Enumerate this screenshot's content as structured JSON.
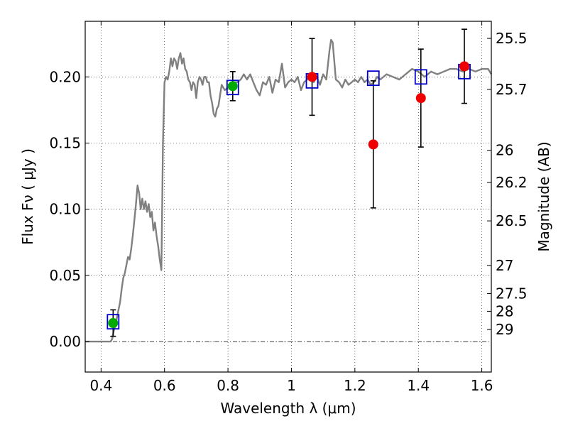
{
  "chart_data": {
    "type": "scatter",
    "xlabel": "Wavelength  λ (μm)",
    "ylabel_left": "Flux  Fν  ( μJy )",
    "ylabel_right": "Magnitude (AB)",
    "xlim": [
      0.35,
      1.63
    ],
    "ylim": [
      -0.023,
      0.242
    ],
    "grid": true,
    "x_ticks": [
      0.4,
      0.6,
      0.8,
      1.0,
      1.2,
      1.4,
      1.6
    ],
    "x_tick_labels": [
      "0.4",
      "0.6",
      "0.8",
      "1",
      "1.2",
      "1.4",
      "1.6"
    ],
    "y_ticks": [
      0.0,
      0.05,
      0.1,
      0.15,
      0.2
    ],
    "y_tick_labels": [
      "0.00",
      "0.05",
      "0.10",
      "0.15",
      "0.20"
    ],
    "mag_ticks": [
      25.5,
      25.7,
      26,
      26.2,
      26.5,
      27,
      27.5,
      28,
      29
    ],
    "mag_tick_labels": [
      "25.5",
      "25.7",
      "26",
      "26.2",
      "26.5",
      "27",
      "27.5",
      "28",
      "29"
    ],
    "zero_line_y": 0.0,
    "series": [
      {
        "style": "line",
        "color": "#808080",
        "x": [
          0.35,
          0.43,
          0.435,
          0.44,
          0.445,
          0.45,
          0.455,
          0.46,
          0.465,
          0.47,
          0.475,
          0.48,
          0.485,
          0.49,
          0.495,
          0.5,
          0.505,
          0.51,
          0.515,
          0.52,
          0.525,
          0.53,
          0.535,
          0.54,
          0.545,
          0.55,
          0.555,
          0.56,
          0.565,
          0.57,
          0.575,
          0.58,
          0.585,
          0.59,
          0.595,
          0.6,
          0.605,
          0.61,
          0.615,
          0.62,
          0.625,
          0.63,
          0.635,
          0.64,
          0.645,
          0.65,
          0.655,
          0.66,
          0.665,
          0.67,
          0.675,
          0.68,
          0.685,
          0.69,
          0.695,
          0.7,
          0.705,
          0.71,
          0.715,
          0.72,
          0.725,
          0.73,
          0.735,
          0.74,
          0.745,
          0.75,
          0.755,
          0.76,
          0.765,
          0.77,
          0.775,
          0.78,
          0.785,
          0.79,
          0.8,
          0.81,
          0.82,
          0.83,
          0.84,
          0.85,
          0.86,
          0.87,
          0.88,
          0.89,
          0.9,
          0.91,
          0.92,
          0.93,
          0.94,
          0.95,
          0.96,
          0.97,
          0.98,
          0.99,
          1.0,
          1.01,
          1.02,
          1.03,
          1.04,
          1.05,
          1.06,
          1.07,
          1.08,
          1.09,
          1.1,
          1.11,
          1.12,
          1.125,
          1.13,
          1.135,
          1.14,
          1.15,
          1.16,
          1.17,
          1.18,
          1.19,
          1.2,
          1.21,
          1.22,
          1.23,
          1.24,
          1.25,
          1.26,
          1.27,
          1.28,
          1.3,
          1.32,
          1.34,
          1.36,
          1.38,
          1.4,
          1.42,
          1.44,
          1.46,
          1.48,
          1.5,
          1.52,
          1.54,
          1.56,
          1.58,
          1.6,
          1.62,
          1.63
        ],
        "y": [
          0.0,
          0.0,
          0.002,
          0.008,
          0.012,
          0.018,
          0.024,
          0.03,
          0.04,
          0.048,
          0.052,
          0.058,
          0.064,
          0.062,
          0.07,
          0.08,
          0.092,
          0.104,
          0.118,
          0.112,
          0.1,
          0.108,
          0.1,
          0.106,
          0.098,
          0.104,
          0.094,
          0.098,
          0.084,
          0.09,
          0.08,
          0.072,
          0.062,
          0.054,
          0.15,
          0.196,
          0.2,
          0.198,
          0.204,
          0.214,
          0.208,
          0.214,
          0.212,
          0.206,
          0.214,
          0.218,
          0.21,
          0.214,
          0.206,
          0.204,
          0.198,
          0.196,
          0.19,
          0.196,
          0.194,
          0.184,
          0.196,
          0.2,
          0.198,
          0.194,
          0.2,
          0.2,
          0.196,
          0.196,
          0.186,
          0.18,
          0.172,
          0.17,
          0.176,
          0.178,
          0.186,
          0.194,
          0.192,
          0.19,
          0.192,
          0.194,
          0.196,
          0.196,
          0.198,
          0.202,
          0.198,
          0.202,
          0.196,
          0.19,
          0.186,
          0.196,
          0.194,
          0.2,
          0.188,
          0.198,
          0.196,
          0.21,
          0.192,
          0.196,
          0.198,
          0.196,
          0.2,
          0.19,
          0.196,
          0.198,
          0.202,
          0.196,
          0.2,
          0.194,
          0.202,
          0.198,
          0.22,
          0.228,
          0.226,
          0.212,
          0.198,
          0.196,
          0.192,
          0.198,
          0.194,
          0.196,
          0.198,
          0.196,
          0.2,
          0.196,
          0.198,
          0.194,
          0.196,
          0.2,
          0.198,
          0.202,
          0.2,
          0.198,
          0.202,
          0.206,
          0.204,
          0.2,
          0.204,
          0.202,
          0.204,
          0.206,
          0.206,
          0.204,
          0.206,
          0.204,
          0.206,
          0.206,
          0.202
        ]
      },
      {
        "style": "open-square",
        "color": "#0000cc",
        "x": [
          0.438,
          0.815,
          1.065,
          1.258,
          1.408,
          1.545
        ],
        "y": [
          0.015,
          0.192,
          0.197,
          0.199,
          0.2,
          0.204
        ]
      },
      {
        "style": "filled-circle",
        "color": "#00aa00",
        "x": [
          0.438,
          0.815
        ],
        "y": [
          0.014,
          0.193
        ],
        "err": [
          0.01,
          0.011
        ]
      },
      {
        "style": "filled-circle",
        "color": "#ee0000",
        "x": [
          1.065,
          1.258,
          1.408,
          1.545
        ],
        "y": [
          0.2,
          0.149,
          0.184,
          0.208
        ],
        "err": [
          0.029,
          0.048,
          0.037,
          0.028
        ]
      }
    ]
  }
}
